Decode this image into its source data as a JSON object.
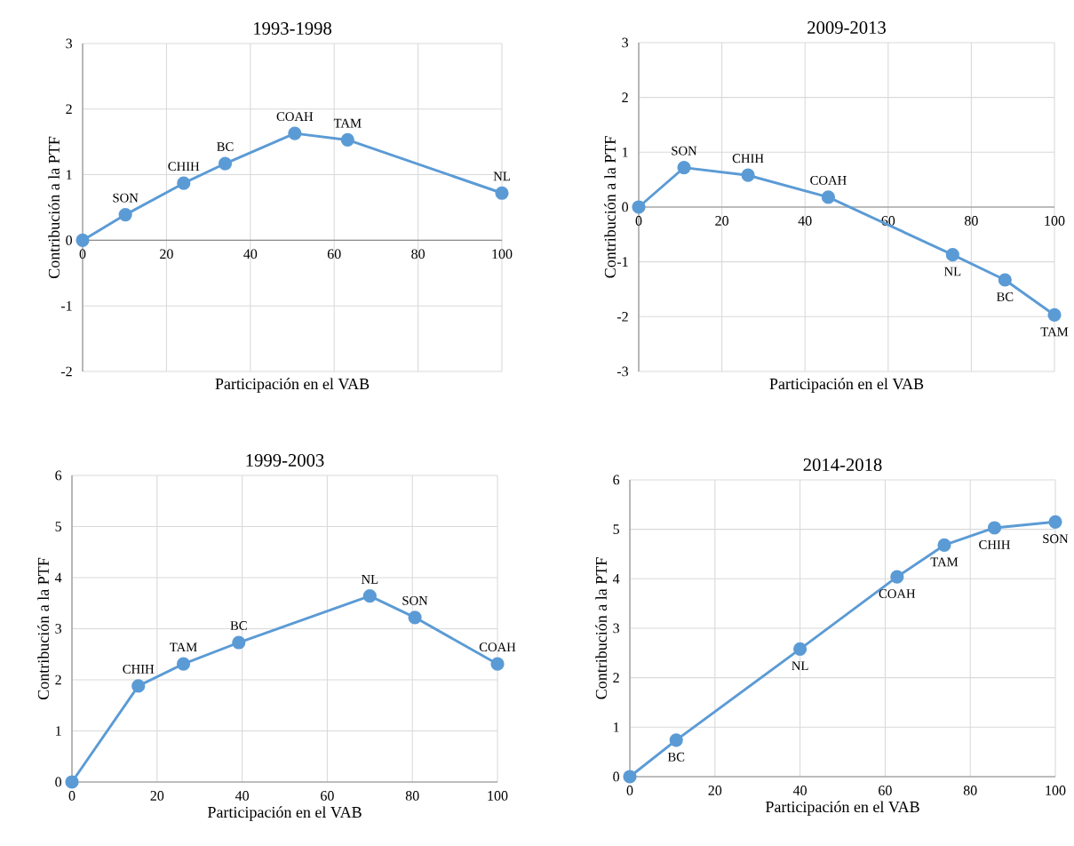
{
  "chart_data": [
    {
      "type": "line",
      "title": "1993-1998",
      "xlabel": "Participación en el VAB",
      "ylabel": "Contribución a la PTF",
      "xlim": [
        0,
        100
      ],
      "ylim": [
        -2,
        3
      ],
      "xticks": [
        0,
        20,
        40,
        60,
        80,
        100
      ],
      "yticks": [
        -2,
        -1,
        0,
        1,
        2,
        3
      ],
      "grid": true,
      "marker": "circle",
      "line_style": "solid",
      "series": [
        {
          "color": "#5b9bd5",
          "x": [
            0,
            10.2,
            24.1,
            34.0,
            50.6,
            63.2,
            100
          ],
          "values": [
            0,
            0.39,
            0.87,
            1.17,
            1.63,
            1.53,
            0.72
          ]
        }
      ],
      "annotations": [
        {
          "text": "SON",
          "x": 10.2,
          "y": 0.39
        },
        {
          "text": "CHIH",
          "x": 24.1,
          "y": 0.87
        },
        {
          "text": "BC",
          "x": 34.0,
          "y": 1.17
        },
        {
          "text": "COAH",
          "x": 50.6,
          "y": 1.63
        },
        {
          "text": "TAM",
          "x": 63.2,
          "y": 1.53
        },
        {
          "text": "NL",
          "x": 100,
          "y": 0.72
        }
      ]
    },
    {
      "type": "line",
      "title": "2009-2013",
      "xlabel": "Participación en el VAB",
      "ylabel": "Contribución a la PTF",
      "xlim": [
        0,
        100
      ],
      "ylim": [
        -3,
        3
      ],
      "xticks": [
        0,
        20,
        40,
        60,
        80,
        100
      ],
      "yticks": [
        -3,
        -2,
        -1,
        0,
        1,
        2,
        3
      ],
      "grid": true,
      "marker": "circle",
      "line_style": "solid",
      "series": [
        {
          "color": "#5b9bd5",
          "x": [
            0,
            10.9,
            26.3,
            45.6,
            75.5,
            88.1,
            100
          ],
          "values": [
            0,
            0.72,
            0.58,
            0.18,
            -0.87,
            -1.33,
            -1.97
          ]
        }
      ],
      "annotations": [
        {
          "text": "SON",
          "x": 10.9,
          "y": 0.72
        },
        {
          "text": "CHIH",
          "x": 26.3,
          "y": 0.58
        },
        {
          "text": "COAH",
          "x": 45.6,
          "y": 0.18
        },
        {
          "text": "NL",
          "x": 75.5,
          "y": -0.87
        },
        {
          "text": "BC",
          "x": 88.1,
          "y": -1.33
        },
        {
          "text": "TAM",
          "x": 100,
          "y": -1.97
        }
      ]
    },
    {
      "type": "line",
      "title": "1999-2003",
      "xlabel": "Participación en el VAB",
      "ylabel": "Contribución a la PTF",
      "xlim": [
        0,
        100
      ],
      "ylim": [
        0,
        6
      ],
      "xticks": [
        0,
        20,
        40,
        60,
        80,
        100
      ],
      "yticks": [
        0,
        1,
        2,
        3,
        4,
        5,
        6
      ],
      "grid": true,
      "marker": "circle",
      "line_style": "solid",
      "series": [
        {
          "color": "#5b9bd5",
          "x": [
            0,
            15.6,
            26.2,
            39.2,
            70.0,
            80.6,
            100
          ],
          "values": [
            0,
            1.88,
            2.31,
            2.73,
            3.64,
            3.22,
            2.31
          ]
        }
      ],
      "annotations": [
        {
          "text": "CHIH",
          "x": 15.6,
          "y": 1.88
        },
        {
          "text": "TAM",
          "x": 26.2,
          "y": 2.31
        },
        {
          "text": "BC",
          "x": 39.2,
          "y": 2.73
        },
        {
          "text": "NL",
          "x": 70.0,
          "y": 3.64
        },
        {
          "text": "SON",
          "x": 80.6,
          "y": 3.22
        },
        {
          "text": "COAH",
          "x": 100,
          "y": 2.31
        }
      ]
    },
    {
      "type": "line",
      "title": "2014-2018",
      "xlabel": "Participación en el VAB",
      "ylabel": "Contribución a la PTF",
      "xlim": [
        0,
        100
      ],
      "ylim": [
        0,
        6
      ],
      "xticks": [
        0,
        20,
        40,
        60,
        80,
        100
      ],
      "yticks": [
        0,
        1,
        2,
        3,
        4,
        5,
        6
      ],
      "grid": true,
      "marker": "circle",
      "line_style": "solid",
      "series": [
        {
          "color": "#5b9bd5",
          "x": [
            0,
            10.9,
            40.0,
            62.8,
            73.9,
            85.7,
            100
          ],
          "values": [
            0,
            0.74,
            2.58,
            4.04,
            4.68,
            5.03,
            5.15
          ]
        }
      ],
      "annotations": [
        {
          "text": "BC",
          "x": 10.9,
          "y": 0.74
        },
        {
          "text": "NL",
          "x": 40.0,
          "y": 2.58
        },
        {
          "text": "COAH",
          "x": 62.8,
          "y": 4.04
        },
        {
          "text": "TAM",
          "x": 73.9,
          "y": 4.68
        },
        {
          "text": "CHIH",
          "x": 85.7,
          "y": 5.03
        },
        {
          "text": "SON",
          "x": 100,
          "y": 5.15
        }
      ]
    }
  ]
}
